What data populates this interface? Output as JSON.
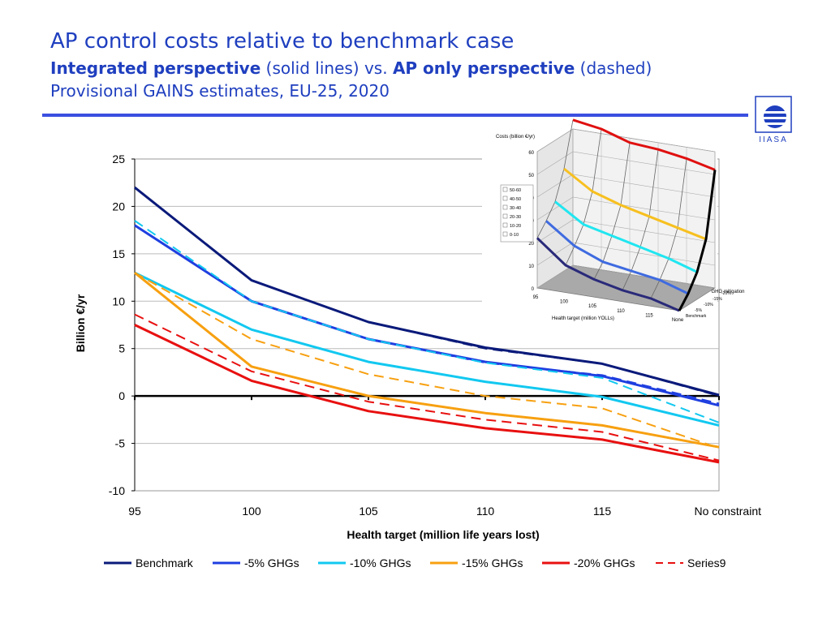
{
  "header": {
    "title": "AP control costs relative to benchmark case",
    "subtitle_bold_1": "Integrated perspective",
    "subtitle_normal_1": " (solid lines) vs. ",
    "subtitle_bold_2": "AP only perspective",
    "subtitle_normal_2": " (dashed)",
    "line3": "Provisional GAINS estimates, EU-25, 2020",
    "logo_text": "IIASA"
  },
  "colors": {
    "title": "#1f3fbf",
    "rule": "#3b4fe0",
    "benchmark": "#0a1a7a",
    "ghg5": "#1f3fe0",
    "ghg10": "#12c8f0",
    "ghg15": "#f7a010",
    "ghg20": "#e81010"
  },
  "chart_data": [
    {
      "type": "line",
      "xlabel": "Health target (million life years lost)",
      "ylabel": "Billion €/yr",
      "categories": [
        "95",
        "100",
        "105",
        "110",
        "115",
        "No  constraint"
      ],
      "ylim": [
        -10,
        25
      ],
      "yticks": [
        -10,
        -5,
        0,
        5,
        10,
        15,
        20,
        25
      ],
      "grid": true,
      "legend_position": "bottom",
      "legend": [
        {
          "label": "Benchmark",
          "color": "#0a1a7a",
          "dashed": false
        },
        {
          "label": "-5% GHGs",
          "color": "#1f3fe0",
          "dashed": false
        },
        {
          "label": "-10% GHGs",
          "color": "#12c8f0",
          "dashed": false
        },
        {
          "label": "-15% GHGs",
          "color": "#f7a010",
          "dashed": false
        },
        {
          "label": "-20% GHGs",
          "color": "#e81010",
          "dashed": false
        },
        {
          "label": "Series9",
          "color": "#e81010",
          "dashed": true
        }
      ],
      "series": [
        {
          "name": "Benchmark",
          "color": "#0a1a7a",
          "dashed": false,
          "values": [
            22,
            12.2,
            7.8,
            5.1,
            3.4,
            0.1
          ]
        },
        {
          "name": "-5% GHGs",
          "color": "#1f3fe0",
          "dashed": false,
          "values": [
            18,
            10,
            6,
            3.6,
            2.1,
            -1
          ]
        },
        {
          "name": "-10% GHGs",
          "color": "#12c8f0",
          "dashed": false,
          "values": [
            13,
            7,
            3.6,
            1.5,
            -0.1,
            -3.1
          ]
        },
        {
          "name": "-15% GHGs",
          "color": "#f7a010",
          "dashed": false,
          "values": [
            13,
            3.1,
            0,
            -1.8,
            -3.1,
            -5.4
          ]
        },
        {
          "name": "-20% GHGs",
          "color": "#e81010",
          "dashed": false,
          "values": [
            7.5,
            1.6,
            -1.6,
            -3.4,
            -4.6,
            -7
          ]
        },
        {
          "color": "#0a1a7a",
          "dashed": true,
          "values": [
            22,
            12.2,
            7.8,
            5,
            3.4,
            0
          ]
        },
        {
          "color": "#1f3fe0",
          "dashed": true,
          "values": [
            18,
            10,
            6,
            3.5,
            2.2,
            -0.8
          ]
        },
        {
          "color": "#12c8f0",
          "dashed": true,
          "values": [
            18.5,
            10,
            6,
            3.5,
            1.9,
            -2.8
          ]
        },
        {
          "color": "#f7a010",
          "dashed": true,
          "values": [
            13,
            6,
            2.3,
            0,
            -1.3,
            -5.5
          ]
        },
        {
          "color": "#e81010",
          "dashed": true,
          "values": [
            8.6,
            2.6,
            -0.6,
            -2.5,
            -3.8,
            -6.8
          ]
        }
      ]
    },
    {
      "type": "line",
      "title": "Costs (billion €/yr)",
      "xlabel": "Health target (million YOLLs)",
      "ylabel": "GHG mitigation",
      "categories": [
        "95",
        "100",
        "105",
        "110",
        "115",
        "None"
      ],
      "depth_categories": [
        "Benchmark",
        "-5%",
        "-10%",
        "-15%",
        "-20%"
      ],
      "zlim": [
        0,
        60
      ],
      "zticks": [
        0,
        10,
        20,
        30,
        40,
        50,
        60
      ],
      "legend": [
        "50-60",
        "40-50",
        "30-40",
        "20-30",
        "10-20",
        "0-10"
      ],
      "series": [
        {
          "name": "Benchmark",
          "values": [
            22,
            12,
            7.8,
            5,
            3.4,
            0
          ]
        },
        {
          "name": "-5%",
          "values": [
            27,
            18,
            13,
            11,
            9,
            5
          ]
        },
        {
          "name": "-10%",
          "values": [
            33,
            25,
            22,
            19,
            16,
            12
          ]
        },
        {
          "name": "-15%",
          "values": [
            45,
            37,
            33,
            30,
            27,
            24
          ]
        },
        {
          "name": "-20%",
          "values": [
            72,
            62,
            58,
            57,
            55,
            52
          ]
        }
      ]
    }
  ]
}
